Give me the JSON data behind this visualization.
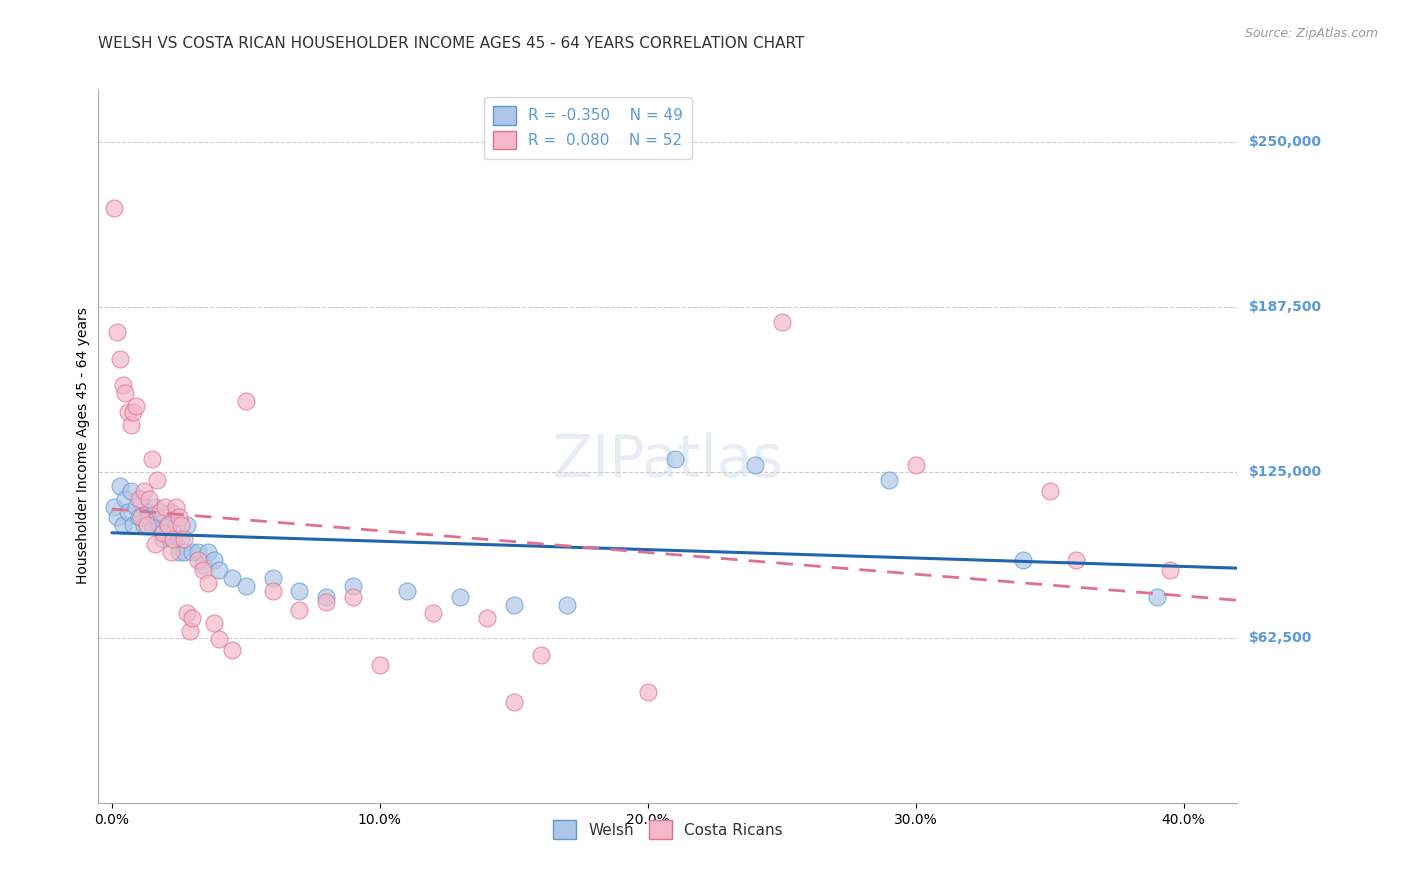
{
  "title": "WELSH VS COSTA RICAN HOUSEHOLDER INCOME AGES 45 - 64 YEARS CORRELATION CHART",
  "source": "Source: ZipAtlas.com",
  "ylabel": "Householder Income Ages 45 - 64 years",
  "xlabel_ticks": [
    "0.0%",
    "10.0%",
    "20.0%",
    "30.0%",
    "40.0%"
  ],
  "xlabel_vals": [
    0.0,
    0.1,
    0.2,
    0.3,
    0.4
  ],
  "ytick_labels": [
    "$62,500",
    "$125,000",
    "$187,500",
    "$250,000"
  ],
  "ytick_vals": [
    62500,
    125000,
    187500,
    250000
  ],
  "ymin": 0,
  "ymax": 270000,
  "xmin": -0.005,
  "xmax": 0.42,
  "welsh_R": -0.35,
  "welsh_N": 49,
  "costarican_R": 0.08,
  "costarican_N": 52,
  "welsh_color": "#aec6e8",
  "welsh_edge_color": "#5b9bd5",
  "costarican_color": "#f4b8c8",
  "costarican_edge_color": "#e07090",
  "welsh_line_color": "#2166ac",
  "costarican_line_color": "#e07090",
  "watermark": "ZIPatlas",
  "welsh_points": [
    [
      0.001,
      112000
    ],
    [
      0.002,
      108000
    ],
    [
      0.003,
      120000
    ],
    [
      0.004,
      105000
    ],
    [
      0.005,
      115000
    ],
    [
      0.006,
      110000
    ],
    [
      0.007,
      118000
    ],
    [
      0.008,
      105000
    ],
    [
      0.009,
      112000
    ],
    [
      0.01,
      108000
    ],
    [
      0.011,
      115000
    ],
    [
      0.012,
      105000
    ],
    [
      0.013,
      110000
    ],
    [
      0.014,
      108000
    ],
    [
      0.015,
      105000
    ],
    [
      0.016,
      112000
    ],
    [
      0.017,
      108000
    ],
    [
      0.018,
      105000
    ],
    [
      0.019,
      100000
    ],
    [
      0.02,
      108000
    ],
    [
      0.021,
      105000
    ],
    [
      0.022,
      110000
    ],
    [
      0.023,
      100000
    ],
    [
      0.024,
      105000
    ],
    [
      0.025,
      95000
    ],
    [
      0.026,
      100000
    ],
    [
      0.027,
      95000
    ],
    [
      0.028,
      105000
    ],
    [
      0.03,
      95000
    ],
    [
      0.032,
      95000
    ],
    [
      0.034,
      90000
    ],
    [
      0.036,
      95000
    ],
    [
      0.038,
      92000
    ],
    [
      0.04,
      88000
    ],
    [
      0.045,
      85000
    ],
    [
      0.05,
      82000
    ],
    [
      0.06,
      85000
    ],
    [
      0.07,
      80000
    ],
    [
      0.08,
      78000
    ],
    [
      0.09,
      82000
    ],
    [
      0.11,
      80000
    ],
    [
      0.13,
      78000
    ],
    [
      0.15,
      75000
    ],
    [
      0.17,
      75000
    ],
    [
      0.21,
      130000
    ],
    [
      0.24,
      128000
    ],
    [
      0.29,
      122000
    ],
    [
      0.34,
      92000
    ],
    [
      0.39,
      78000
    ]
  ],
  "costarican_points": [
    [
      0.001,
      225000
    ],
    [
      0.002,
      178000
    ],
    [
      0.003,
      168000
    ],
    [
      0.004,
      158000
    ],
    [
      0.005,
      155000
    ],
    [
      0.006,
      148000
    ],
    [
      0.007,
      143000
    ],
    [
      0.008,
      148000
    ],
    [
      0.009,
      150000
    ],
    [
      0.01,
      115000
    ],
    [
      0.011,
      108000
    ],
    [
      0.012,
      118000
    ],
    [
      0.013,
      105000
    ],
    [
      0.014,
      115000
    ],
    [
      0.015,
      130000
    ],
    [
      0.016,
      98000
    ],
    [
      0.017,
      122000
    ],
    [
      0.018,
      110000
    ],
    [
      0.019,
      102000
    ],
    [
      0.02,
      112000
    ],
    [
      0.021,
      105000
    ],
    [
      0.022,
      95000
    ],
    [
      0.023,
      100000
    ],
    [
      0.024,
      112000
    ],
    [
      0.025,
      108000
    ],
    [
      0.026,
      105000
    ],
    [
      0.027,
      100000
    ],
    [
      0.028,
      72000
    ],
    [
      0.029,
      65000
    ],
    [
      0.03,
      70000
    ],
    [
      0.032,
      92000
    ],
    [
      0.034,
      88000
    ],
    [
      0.036,
      83000
    ],
    [
      0.038,
      68000
    ],
    [
      0.04,
      62000
    ],
    [
      0.045,
      58000
    ],
    [
      0.05,
      152000
    ],
    [
      0.06,
      80000
    ],
    [
      0.07,
      73000
    ],
    [
      0.08,
      76000
    ],
    [
      0.09,
      78000
    ],
    [
      0.1,
      52000
    ],
    [
      0.12,
      72000
    ],
    [
      0.14,
      70000
    ],
    [
      0.15,
      38000
    ],
    [
      0.16,
      56000
    ],
    [
      0.2,
      42000
    ],
    [
      0.25,
      182000
    ],
    [
      0.3,
      128000
    ],
    [
      0.35,
      118000
    ],
    [
      0.36,
      92000
    ],
    [
      0.395,
      88000
    ]
  ],
  "title_fontsize": 11,
  "axis_label_fontsize": 10,
  "tick_fontsize": 10,
  "legend_fontsize": 11,
  "source_fontsize": 9,
  "watermark_fontsize": 42,
  "background_color": "#ffffff",
  "grid_color": "#cccccc",
  "right_label_color": "#5b9bd5"
}
